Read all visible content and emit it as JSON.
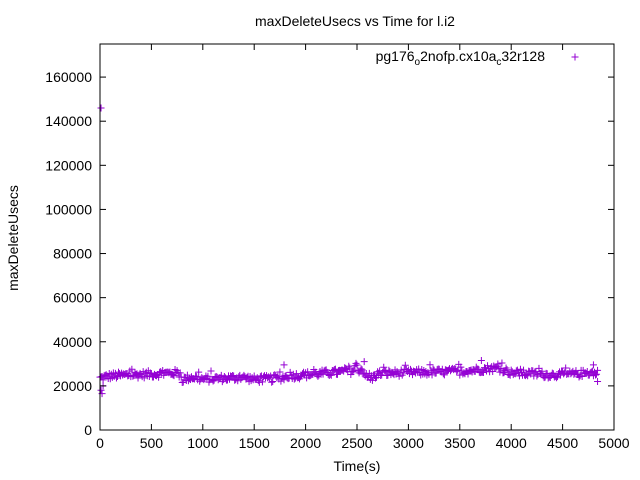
{
  "chart_data": {
    "type": "scatter",
    "title": "maxDeleteUsecs vs Time for l.i2",
    "xlabel": "Time(s)",
    "ylabel": "maxDeleteUsecs",
    "xlim": [
      0,
      5000
    ],
    "ylim": [
      0,
      175000
    ],
    "xticks": [
      "0",
      "500",
      "1000",
      "1500",
      "2000",
      "2500",
      "3000",
      "3500",
      "4000",
      "4500",
      "5000"
    ],
    "yticks": [
      "0",
      "20000",
      "40000",
      "60000",
      "80000",
      "100000",
      "120000",
      "140000",
      "160000"
    ],
    "grid": false,
    "legend_position": "top-right",
    "legend": {
      "main": "pg176",
      "sub1": "o",
      "mid": "2nofp.cx10a",
      "sub2": "c",
      "tail": "32r128"
    },
    "series": [
      {
        "name": "pg176_o2nofp.cx10a_c32r128",
        "color": "#9400d3",
        "marker": "+",
        "sample_interval_s": 10,
        "profile_x": [
          0,
          100,
          300,
          500,
          700,
          760,
          800,
          850,
          900,
          1000,
          1200,
          1400,
          1500,
          1700,
          1800,
          1850,
          1900,
          2000,
          2200,
          2400,
          2550,
          2600,
          2650,
          2700,
          2800,
          3000,
          3200,
          3500,
          3700,
          3800,
          3900,
          3950,
          4000,
          4200,
          4400,
          4600,
          4800,
          4840
        ],
        "profile_y": [
          23500,
          24500,
          25000,
          25300,
          25800,
          26000,
          22800,
          23500,
          24000,
          23000,
          23500,
          23800,
          23000,
          23200,
          24000,
          25000,
          24500,
          25000,
          25800,
          26500,
          27500,
          23500,
          23500,
          25500,
          25800,
          26000,
          26200,
          26500,
          27500,
          28000,
          27800,
          27000,
          25800,
          25500,
          25000,
          25300,
          26000,
          24500
        ],
        "outliers": [
          {
            "x": 10,
            "y": 146000
          },
          {
            "x": 10,
            "y": 18000
          },
          {
            "x": 20,
            "y": 16500
          },
          {
            "x": 30,
            "y": 20000
          },
          {
            "x": 1790,
            "y": 29500
          },
          {
            "x": 2570,
            "y": 31000
          },
          {
            "x": 3710,
            "y": 31500
          },
          {
            "x": 4800,
            "y": 29500
          },
          {
            "x": 4840,
            "y": 22000
          }
        ]
      }
    ]
  }
}
